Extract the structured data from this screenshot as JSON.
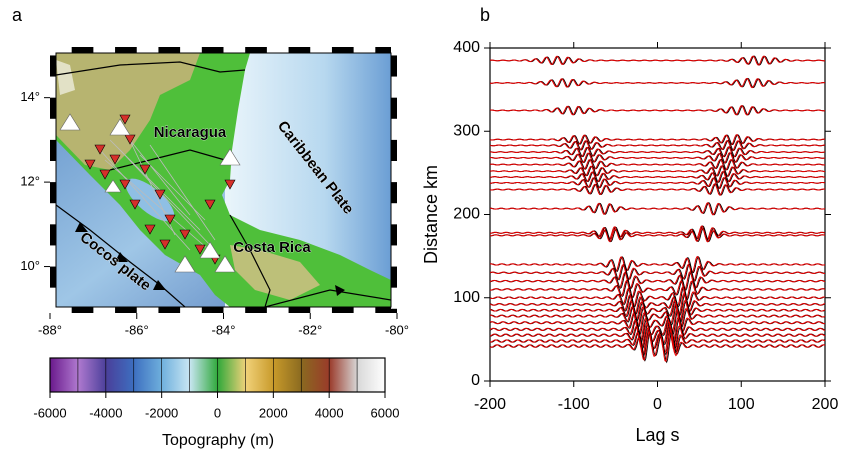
{
  "chart_data": [
    {
      "type": "map",
      "panel": "a",
      "xlim": [
        -88,
        -80
      ],
      "xticks": [
        {
          "value": -88,
          "label": "-88°"
        },
        {
          "value": -86,
          "label": "-86°"
        },
        {
          "value": -84,
          "label": "-84°"
        },
        {
          "value": -82,
          "label": "-82°"
        },
        {
          "value": -80,
          "label": "-80°"
        }
      ],
      "ylim": [
        8.9,
        15.2
      ],
      "yticks": [
        {
          "value": 10,
          "label": "10°"
        },
        {
          "value": 12,
          "label": "12°"
        },
        {
          "value": 14,
          "label": "14°"
        }
      ],
      "annotations": [
        "Nicaragua",
        "Costa Rica",
        "Caribbean Plate",
        "Cocos plate"
      ]
    },
    {
      "type": "colorbar",
      "xlim": [
        -6000,
        6000
      ],
      "xticks": [
        -6000,
        -4000,
        -2000,
        0,
        2000,
        4000,
        6000
      ],
      "xlabel": "Topography (m)",
      "colors": [
        "#6a1a8c",
        "#b07ad0",
        "#4a3f9a",
        "#3d6fc0",
        "#6fb0dd",
        "#c9e6f3",
        "#2fa83a",
        "#f1d27a",
        "#c89a2a",
        "#8a6a20",
        "#9a3a2a",
        "#d8d8d8",
        "#ffffff"
      ]
    },
    {
      "type": "waveform",
      "panel": "b",
      "xlabel": "Lag s",
      "ylabel": "Distance km",
      "xlim": [
        -200,
        200
      ],
      "xticks": [
        -200,
        -100,
        0,
        100,
        200
      ],
      "ylim": [
        0,
        400
      ],
      "yticks": [
        0,
        100,
        200,
        300,
        400
      ],
      "line_colors": [
        "#000000",
        "#e00000"
      ],
      "distances": [
        385,
        358,
        325,
        290,
        283,
        275,
        268,
        260,
        252,
        245,
        238,
        230,
        207,
        178,
        175,
        140,
        130,
        120,
        110,
        100,
        92,
        85,
        78,
        70,
        62,
        55,
        48,
        42
      ]
    }
  ]
}
